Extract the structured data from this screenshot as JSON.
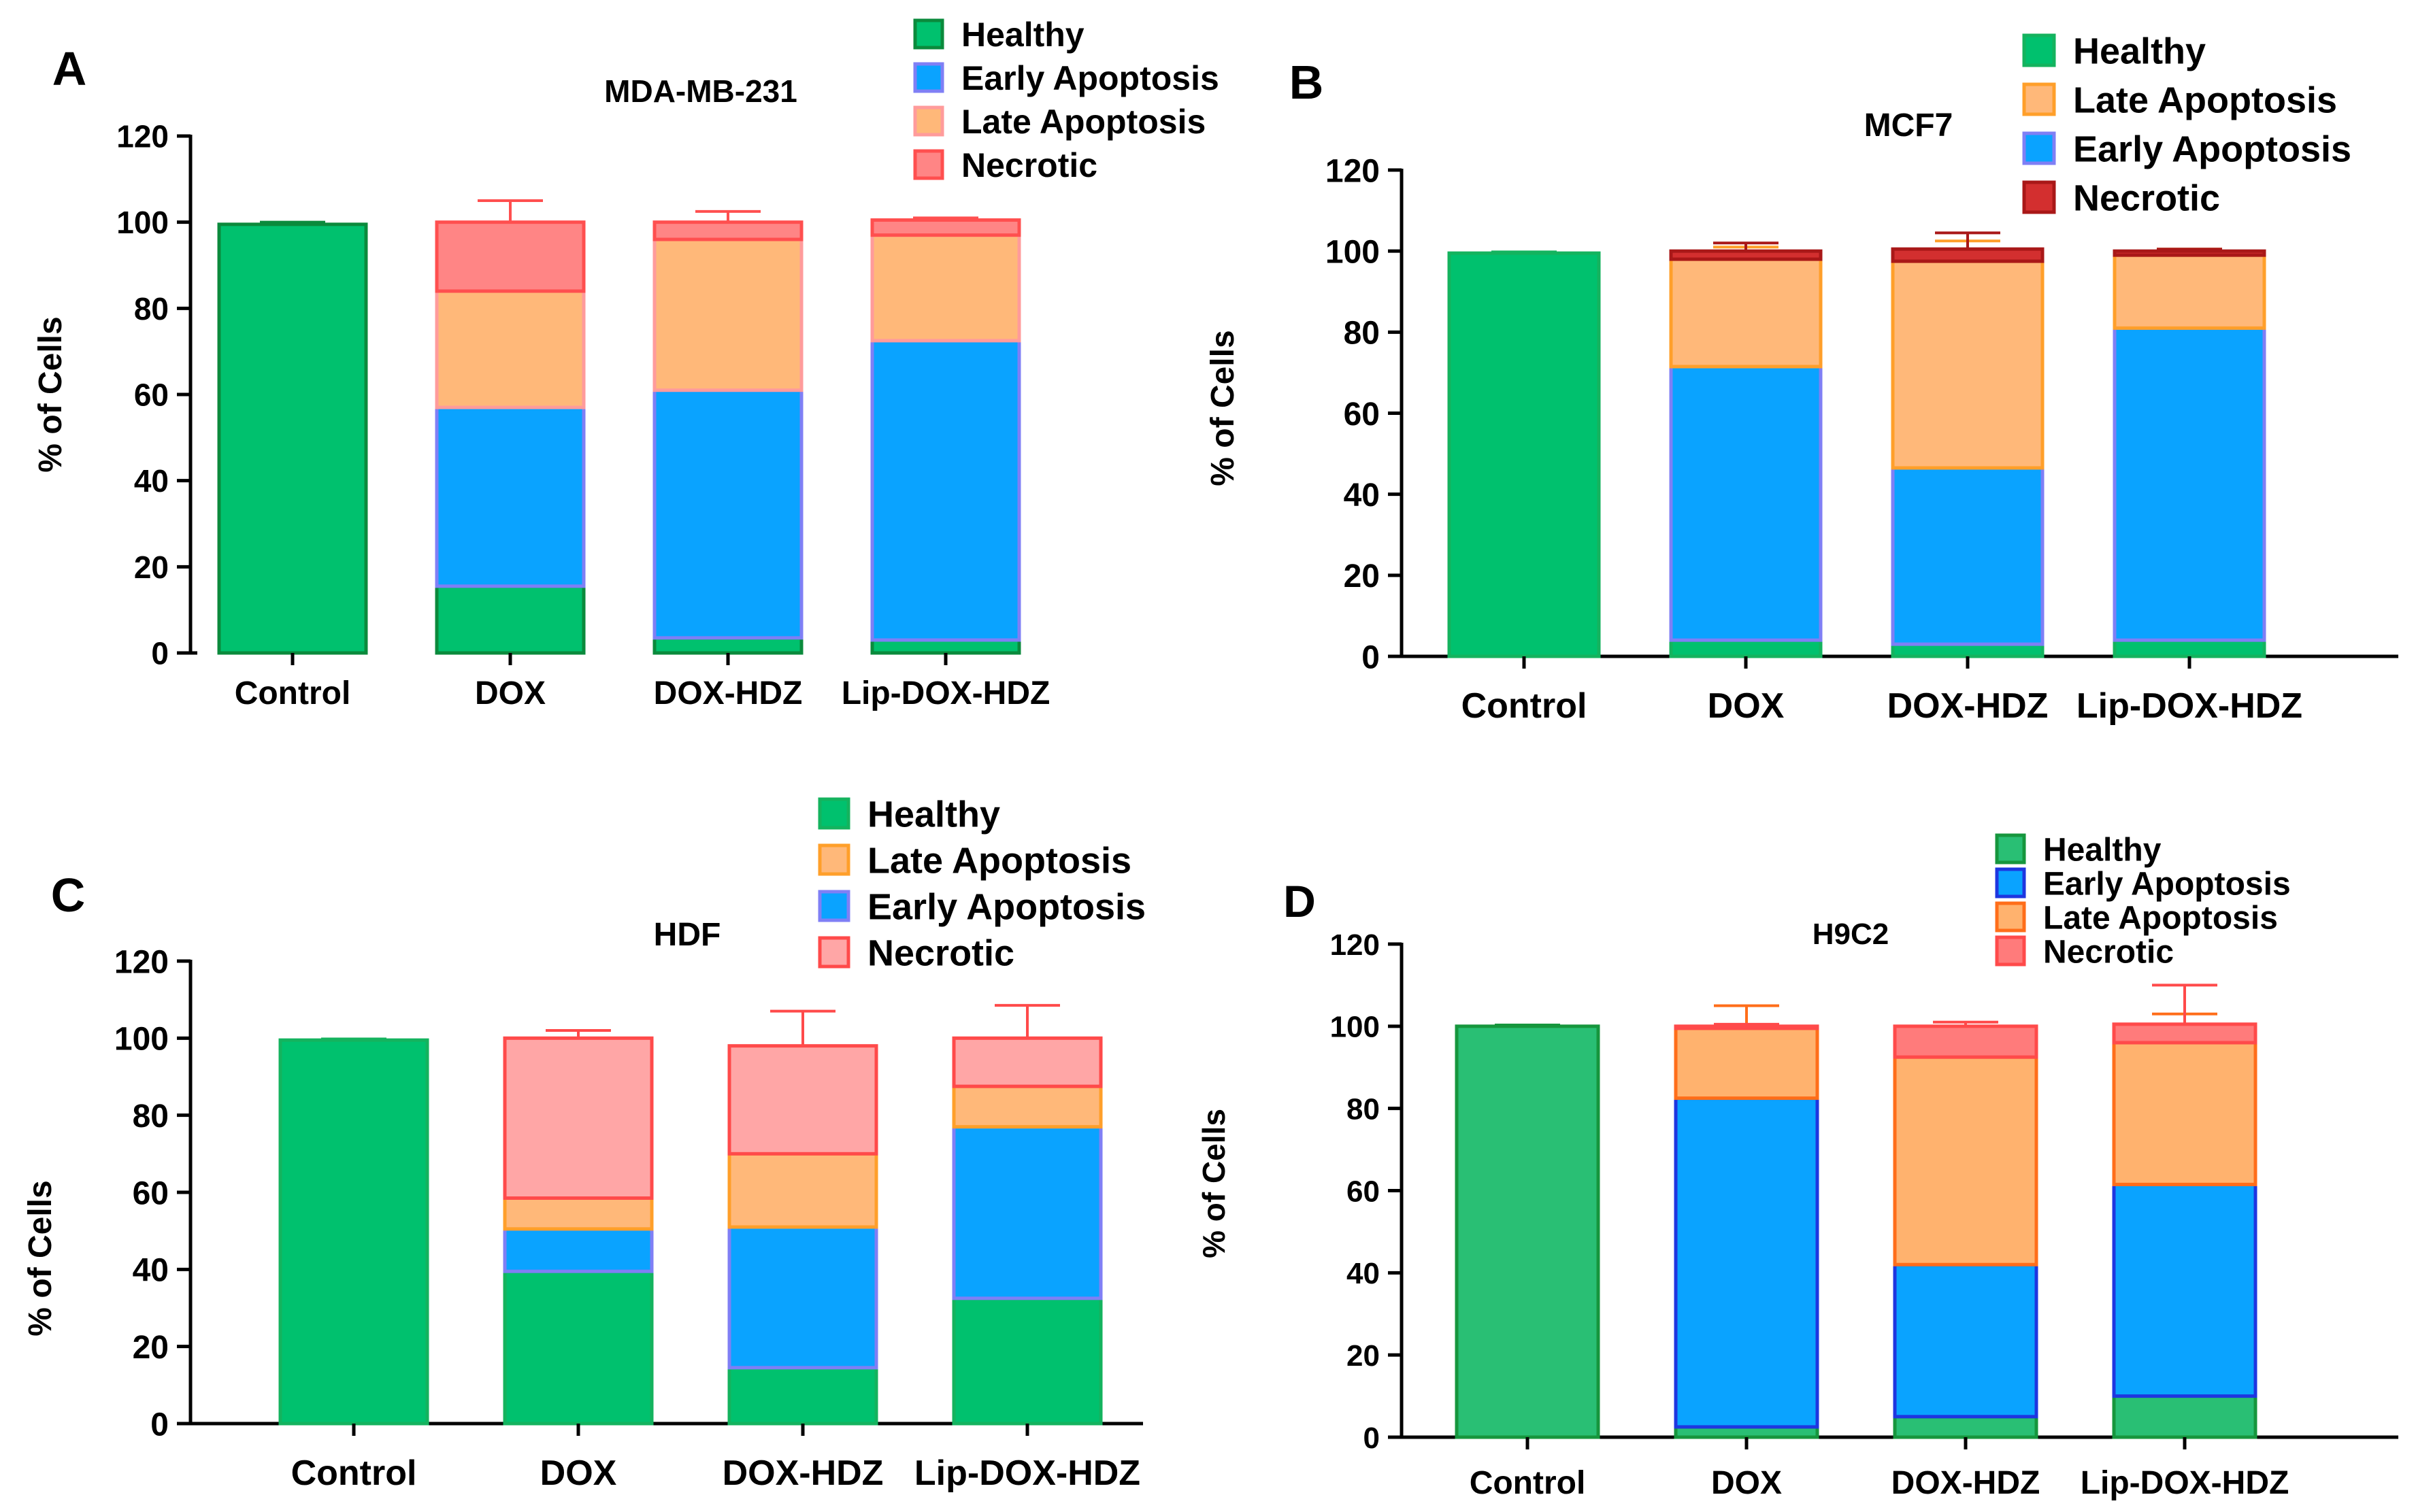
{
  "figure": {
    "background": "#ffffff"
  },
  "chart_data": [
    {
      "panel": "A",
      "type": "bar",
      "stacked": true,
      "title": "MDA-MB-231",
      "xlabel": "",
      "ylabel": "% of Cells",
      "ylim": [
        0,
        120
      ],
      "yticks": [
        "0",
        "20",
        "40",
        "60",
        "80",
        "100",
        "120"
      ],
      "categories": [
        "Control",
        "DOX",
        "DOX-HDZ",
        "Lip-DOX-HDZ"
      ],
      "legend": [
        "Healthy",
        "Early Apoptosis",
        "Late Apoptosis",
        "Necrotic"
      ],
      "series": [
        {
          "name": "Healthy",
          "values": [
            99.5,
            15.5,
            3.5,
            3
          ],
          "errors": [
            0.5,
            3.5,
            1.3,
            1
          ],
          "fill": "#00c16e",
          "stroke": "#0b8a3c"
        },
        {
          "name": "Early Apoptosis",
          "values": [
            0,
            41.5,
            57.5,
            69.5
          ],
          "errors": [
            0,
            1,
            5,
            4
          ],
          "fill": "#0aa3ff",
          "stroke": "#7f7ff5"
        },
        {
          "name": "Late Apoptosis",
          "values": [
            0,
            27,
            35,
            24.5
          ],
          "errors": [
            0,
            0,
            0,
            0
          ],
          "fill": "#ffb879",
          "stroke": "#ff9b9b"
        },
        {
          "name": "Necrotic",
          "values": [
            0,
            16,
            4,
            3.5
          ],
          "errors": [
            0,
            5,
            2.5,
            0.5
          ],
          "fill": "#ff8585",
          "stroke": "#ff4f4f"
        }
      ]
    },
    {
      "panel": "B",
      "type": "bar",
      "stacked": true,
      "title": "MCF7",
      "xlabel": "",
      "ylabel": "% of Cells",
      "ylim": [
        0,
        120
      ],
      "yticks": [
        "0",
        "20",
        "40",
        "60",
        "80",
        "100",
        "120"
      ],
      "categories": [
        "Control",
        "DOX",
        "DOX-HDZ",
        "Lip-DOX-HDZ"
      ],
      "legend": [
        "Healthy",
        "Late Apoptosis",
        "Early Apoptosis",
        "Necrotic"
      ],
      "series": [
        {
          "name": "Healthy",
          "values": [
            99.5,
            4,
            3,
            4
          ],
          "errors": [
            0.3,
            0,
            0,
            0
          ],
          "fill": "#00c16e",
          "stroke": "#14b35e"
        },
        {
          "name": "Early Apoptosis",
          "values": [
            0,
            67.5,
            43.5,
            77
          ],
          "errors": [
            0,
            6.5,
            9,
            3
          ],
          "fill": "#0aa3ff",
          "stroke": "#7f7ff5"
        },
        {
          "name": "Late Apoptosis",
          "values": [
            0,
            26.5,
            51,
            18
          ],
          "errors": [
            0,
            3,
            5,
            1.5
          ],
          "fill": "#ffb879",
          "stroke": "#ff9f2a"
        },
        {
          "name": "Necrotic",
          "values": [
            0,
            2,
            3,
            1
          ],
          "errors": [
            0,
            2,
            4,
            0.5
          ],
          "fill": "#d32f2f",
          "stroke": "#a91818"
        }
      ]
    },
    {
      "panel": "C",
      "type": "bar",
      "stacked": true,
      "title": "HDF",
      "xlabel": "",
      "ylabel": "% of Cells",
      "ylim": [
        0,
        120
      ],
      "yticks": [
        "0",
        "20",
        "40",
        "60",
        "80",
        "100",
        "120"
      ],
      "categories": [
        "Control",
        "DOX",
        "DOX-HDZ",
        "Lip-DOX-HDZ"
      ],
      "legend": [
        "Healthy",
        "Late Apoptosis",
        "Early Apoptosis",
        "Necrotic"
      ],
      "series": [
        {
          "name": "Healthy",
          "values": [
            99.5,
            39.5,
            14.5,
            32.5
          ],
          "errors": [
            0.3,
            5,
            3,
            3
          ],
          "fill": "#00c16e",
          "stroke": "#14b35e"
        },
        {
          "name": "Early Apoptosis",
          "values": [
            0,
            11,
            36.5,
            44.5
          ],
          "errors": [
            0,
            1.5,
            6,
            8
          ],
          "fill": "#0aa3ff",
          "stroke": "#7f7ff5"
        },
        {
          "name": "Late Apoptosis",
          "values": [
            0,
            8,
            19,
            10.5
          ],
          "errors": [
            0,
            3.5,
            5,
            3.5
          ],
          "fill": "#ffb879",
          "stroke": "#ff9f2a"
        },
        {
          "name": "Necrotic",
          "values": [
            0,
            41.5,
            28,
            12.5
          ],
          "errors": [
            0,
            2,
            9,
            8.5
          ],
          "fill": "#ffa6a6",
          "stroke": "#ff4a4a"
        }
      ]
    },
    {
      "panel": "D",
      "type": "bar",
      "stacked": true,
      "title": "H9C2",
      "xlabel": "",
      "ylabel": "% of Cells",
      "ylim": [
        0,
        120
      ],
      "yticks": [
        "0",
        "20",
        "40",
        "60",
        "80",
        "100",
        "120"
      ],
      "categories": [
        "Control",
        "DOX",
        "DOX-HDZ",
        "Lip-DOX-HDZ"
      ],
      "legend": [
        "Healthy",
        "Early Apoptosis",
        "Late Apoptosis",
        "Necrotic"
      ],
      "series": [
        {
          "name": "Healthy",
          "values": [
            100,
            2.5,
            5,
            10
          ],
          "errors": [
            0.3,
            0,
            0,
            0
          ],
          "fill": "#29bf74",
          "stroke": "#16963d"
        },
        {
          "name": "Early Apoptosis",
          "values": [
            0,
            80,
            37,
            51.5
          ],
          "errors": [
            0,
            6,
            6,
            6
          ],
          "fill": "#0aa3ff",
          "stroke": "#1e36e0"
        },
        {
          "name": "Late Apoptosis",
          "values": [
            0,
            17,
            50.5,
            34.5
          ],
          "errors": [
            0,
            5.5,
            5,
            7
          ],
          "fill": "#ffb26e",
          "stroke": "#ff6e1a"
        },
        {
          "name": "Necrotic",
          "values": [
            0,
            0.5,
            7.5,
            4.5
          ],
          "errors": [
            0,
            0.5,
            1,
            9.5
          ],
          "fill": "#ff7b7b",
          "stroke": "#ff4a4a"
        }
      ]
    }
  ]
}
